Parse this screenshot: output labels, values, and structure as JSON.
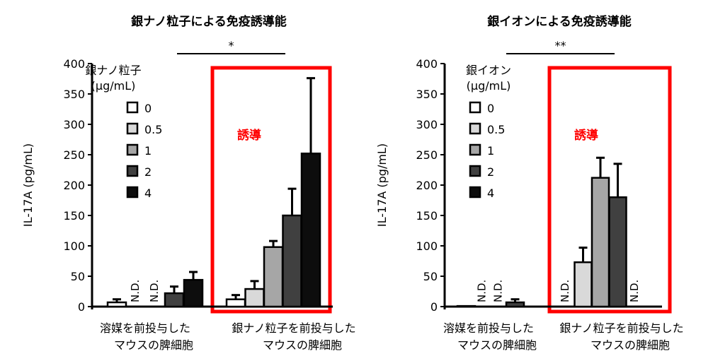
{
  "chart_data": [
    {
      "type": "bar",
      "title": "銀ナノ粒子による免疫誘導能",
      "ylabel": "IL-17A (pg/mL)",
      "ylim": [
        0,
        400
      ],
      "yticks": [
        "0",
        "50",
        "100",
        "150",
        "200",
        "250",
        "300",
        "350",
        "400"
      ],
      "legend_title": [
        "銀ナノ粒子",
        "(μg/mL)"
      ],
      "legend": [
        "0",
        "0.5",
        "1",
        "2",
        "4"
      ],
      "categories": [
        "溶媒を前投与した\nマウスの脾細胞",
        "銀ナノ粒子を前投与した\nマウスの脾細胞"
      ],
      "series_values": [
        [
          7,
          null,
          null,
          22,
          44
        ],
        [
          12,
          29,
          98,
          150,
          252
        ]
      ],
      "error_upper": [
        [
          12,
          null,
          null,
          33,
          57
        ],
        [
          19,
          42,
          108,
          194,
          376
        ]
      ],
      "nd_label": "N.D.",
      "significance": "*",
      "highlight_label": "誘導"
    },
    {
      "type": "bar",
      "title": "銀イオンによる免疫誘導能",
      "ylabel": "IL-17A (pg/mL)",
      "ylim": [
        0,
        400
      ],
      "yticks": [
        "0",
        "50",
        "100",
        "150",
        "200",
        "250",
        "300",
        "350",
        "400"
      ],
      "legend_title": [
        "銀イオン",
        "(μg/mL)"
      ],
      "legend": [
        "0",
        "0.5",
        "1",
        "2",
        "4"
      ],
      "categories": [
        "溶媒を前投与した\nマウスの脾細胞",
        "銀ナノ粒子を前投与した\nマウスの脾細胞"
      ],
      "series_values": [
        [
          1,
          null,
          null,
          7,
          0
        ],
        [
          null,
          73,
          212,
          180,
          null
        ]
      ],
      "error_upper": [
        [
          1,
          null,
          null,
          12,
          0
        ],
        [
          null,
          97,
          245,
          235,
          null
        ]
      ],
      "nd_label": "N.D.",
      "significance": "**",
      "highlight_label": "誘導"
    }
  ],
  "colors": {
    "series": [
      "#ffffff",
      "#d9d9d9",
      "#a6a6a6",
      "#404040",
      "#0d0d0d"
    ],
    "highlight": "#ff0000"
  }
}
